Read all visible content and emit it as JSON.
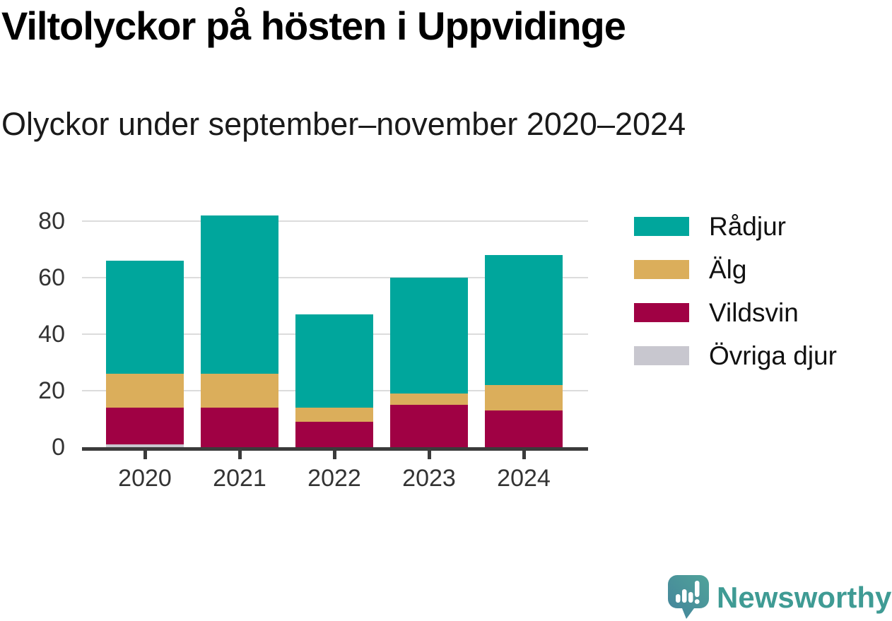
{
  "title": "Viltolyckor på hösten i Uppvidinge",
  "subtitle": "Olyckor under september–november 2020–2024",
  "chart_data": {
    "type": "bar",
    "stacked": true,
    "title": "Viltolyckor på hösten i Uppvidinge",
    "subtitle": "Olyckor under september–november 2020–2024",
    "categories": [
      "2020",
      "2021",
      "2022",
      "2023",
      "2024"
    ],
    "series": [
      {
        "name": "Rådjur",
        "color": "#00A69C",
        "values": [
          40,
          56,
          33,
          41,
          46
        ]
      },
      {
        "name": "Älg",
        "color": "#DBAE5B",
        "values": [
          12,
          12,
          5,
          4,
          9
        ]
      },
      {
        "name": "Vildsvin",
        "color": "#A00144",
        "values": [
          13,
          14,
          9,
          15,
          13
        ]
      },
      {
        "name": "Övriga djur",
        "color": "#C8C7CF",
        "values": [
          1,
          0,
          0,
          0,
          0
        ]
      }
    ],
    "totals": [
      66,
      82,
      47,
      60,
      68
    ],
    "xlabel": "",
    "ylabel": "",
    "ylim": [
      0,
      80
    ],
    "yticks": [
      0,
      20,
      40,
      60,
      80
    ],
    "grid": true,
    "legend_position": "right",
    "style": {
      "axis_color": "#3B3B3B",
      "grid_color": "#DCDCDC",
      "tick_label_color": "#333333"
    }
  },
  "footer": {
    "brand": "Newsworthy",
    "brand_color": "#3F9B94",
    "logo_icon": "newsworthy-speech-bubble-bar-chart-icon"
  }
}
